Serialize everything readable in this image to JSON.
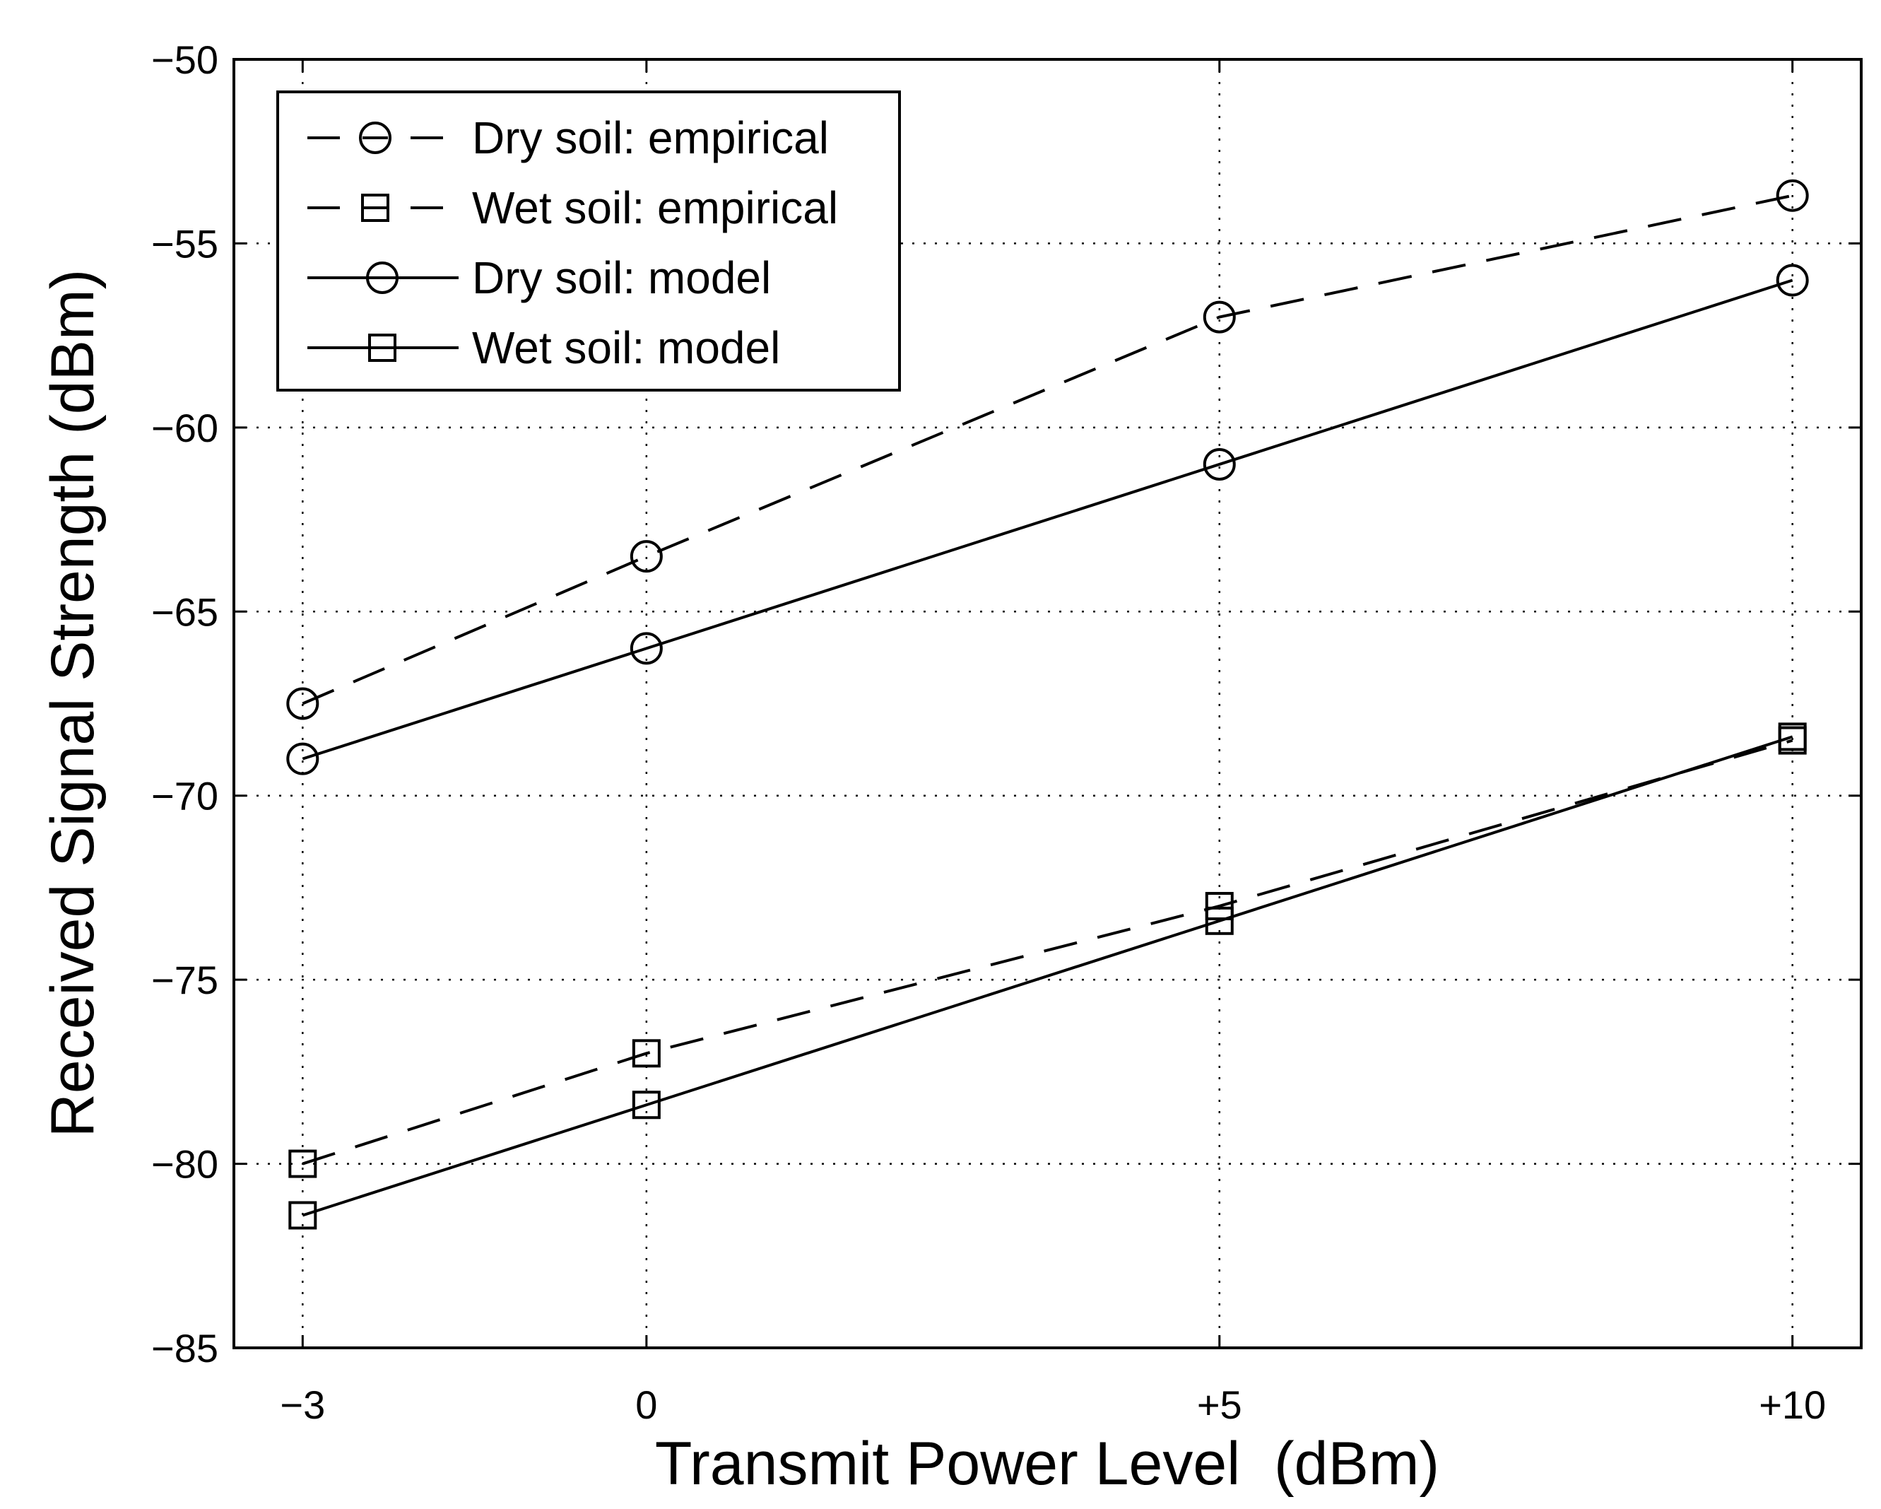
{
  "chart_data": {
    "type": "line",
    "title": "",
    "xlabel": "Transmit Power Level  (dBm)",
    "ylabel": "Received Signal Strength (dBm)",
    "x": [
      -3,
      0,
      5,
      10
    ],
    "x_tick_labels": [
      "−3",
      "0",
      "+5",
      "+10"
    ],
    "xlim": [
      -3.6,
      10.6
    ],
    "ylim": [
      -85,
      -50
    ],
    "y_ticks": [
      -85,
      -80,
      -75,
      -70,
      -65,
      -60,
      -55,
      -50
    ],
    "y_tick_labels": [
      "−85",
      "−80",
      "−75",
      "−70",
      "−65",
      "−60",
      "−55",
      "−50"
    ],
    "grid": true,
    "legend_position": "top-left",
    "series": [
      {
        "name": "Dry soil: empirical",
        "line_style": "dashed",
        "marker": "circle",
        "values": [
          -67.5,
          -63.5,
          -57.0,
          -53.7
        ]
      },
      {
        "name": "Wet soil: empirical",
        "line_style": "dashed",
        "marker": "square",
        "values": [
          -80.0,
          -77.0,
          -73.0,
          -68.5
        ]
      },
      {
        "name": "Dry soil: model",
        "line_style": "solid",
        "marker": "circle",
        "values": [
          -69.0,
          -66.0,
          -61.0,
          -56.0
        ]
      },
      {
        "name": "Wet soil: model",
        "line_style": "solid",
        "marker": "square",
        "values": [
          -81.4,
          -78.4,
          -73.4,
          -68.4
        ]
      }
    ]
  }
}
